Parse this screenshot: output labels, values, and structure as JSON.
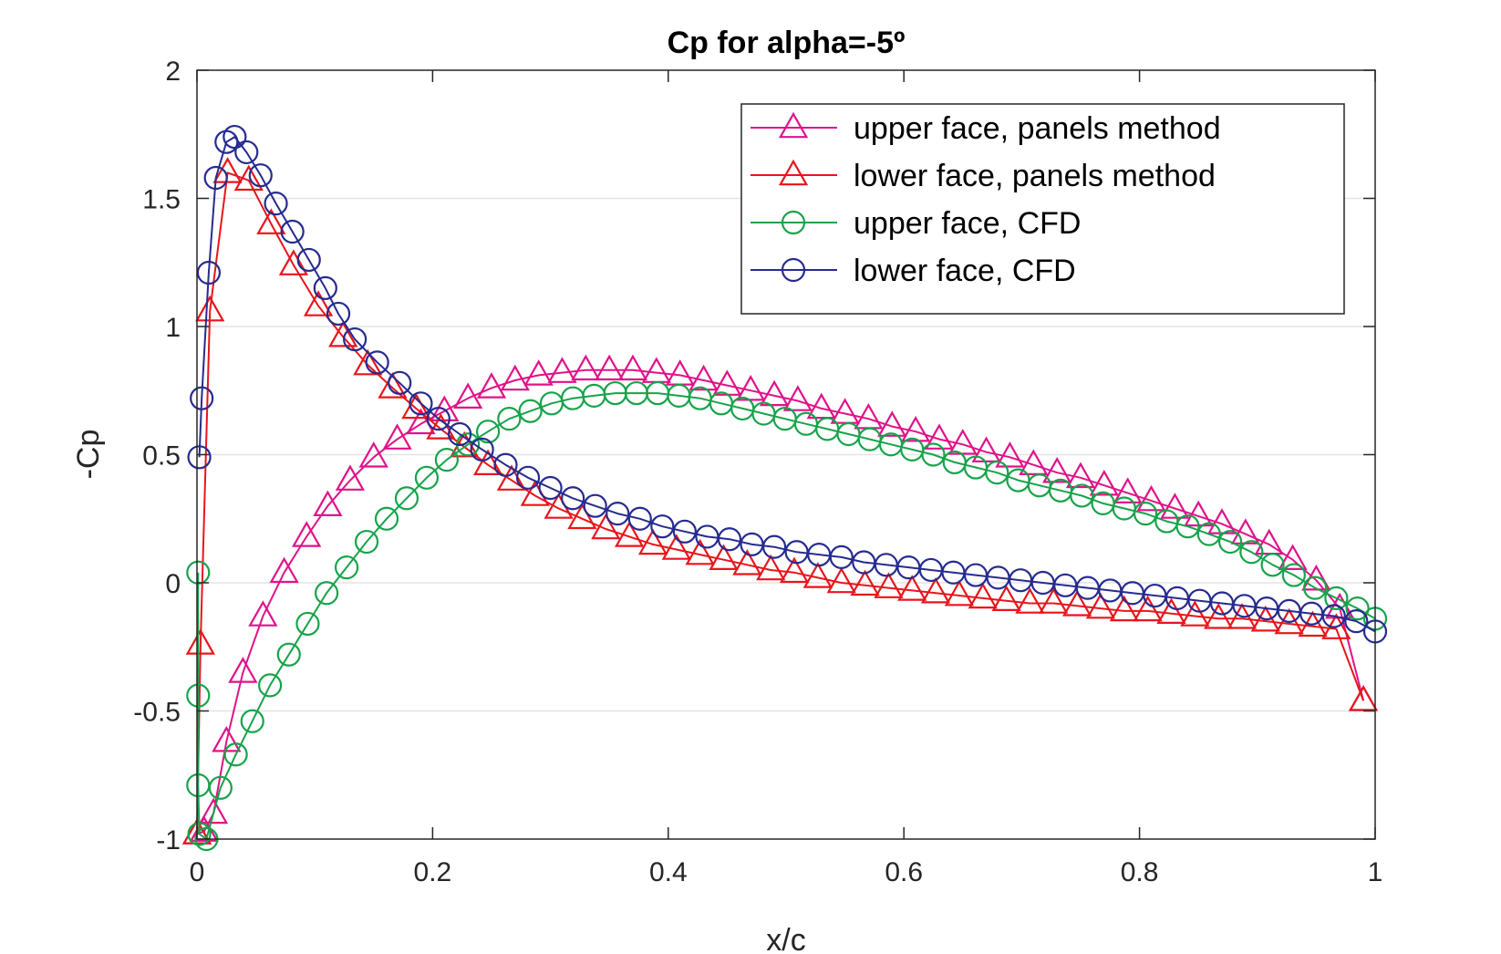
{
  "chart_data": {
    "type": "line",
    "title": "Cp for alpha=-5º",
    "xlabel": "x/c",
    "ylabel": "-Cp",
    "xlim": [
      0,
      1
    ],
    "ylim": [
      -1,
      2
    ],
    "xticks": [
      0,
      0.2,
      0.4,
      0.6,
      0.8,
      1
    ],
    "xtick_labels": [
      "0",
      "0.2",
      "0.4",
      "0.6",
      "0.8",
      "1"
    ],
    "yticks": [
      -1,
      -0.5,
      0,
      0.5,
      1,
      1.5,
      2
    ],
    "ytick_labels": [
      "-1",
      "-0.5",
      "0",
      "0.5",
      "1",
      "1.5",
      "2"
    ],
    "grid": "horizontal",
    "legend_position": "top-right",
    "series": [
      {
        "name": "upper face, panels method",
        "color": "#e0128a",
        "marker": "triangle",
        "x": [
          0.0,
          0.006,
          0.014,
          0.025,
          0.039,
          0.056,
          0.074,
          0.093,
          0.111,
          0.13,
          0.15,
          0.17,
          0.19,
          0.21,
          0.23,
          0.25,
          0.27,
          0.29,
          0.31,
          0.33,
          0.35,
          0.37,
          0.39,
          0.41,
          0.43,
          0.45,
          0.47,
          0.49,
          0.51,
          0.53,
          0.55,
          0.57,
          0.59,
          0.61,
          0.63,
          0.65,
          0.67,
          0.69,
          0.71,
          0.73,
          0.75,
          0.77,
          0.79,
          0.81,
          0.83,
          0.85,
          0.87,
          0.89,
          0.91,
          0.93,
          0.95,
          0.97,
          0.99
        ],
        "y": [
          -0.98,
          -0.97,
          -0.9,
          -0.62,
          -0.35,
          -0.13,
          0.04,
          0.18,
          0.3,
          0.4,
          0.49,
          0.56,
          0.62,
          0.67,
          0.72,
          0.76,
          0.79,
          0.81,
          0.82,
          0.83,
          0.83,
          0.83,
          0.82,
          0.81,
          0.79,
          0.77,
          0.75,
          0.73,
          0.71,
          0.68,
          0.66,
          0.64,
          0.61,
          0.59,
          0.56,
          0.54,
          0.51,
          0.49,
          0.46,
          0.43,
          0.41,
          0.38,
          0.35,
          0.32,
          0.29,
          0.26,
          0.23,
          0.19,
          0.15,
          0.09,
          0.01,
          -0.1,
          -0.46
        ]
      },
      {
        "name": "lower face, panels method",
        "color": "#e8151c",
        "marker": "triangle",
        "x": [
          0.0,
          0.003,
          0.011,
          0.026,
          0.044,
          0.063,
          0.082,
          0.103,
          0.124,
          0.145,
          0.166,
          0.186,
          0.207,
          0.227,
          0.247,
          0.267,
          0.287,
          0.307,
          0.327,
          0.347,
          0.367,
          0.387,
          0.407,
          0.427,
          0.447,
          0.467,
          0.487,
          0.507,
          0.527,
          0.547,
          0.567,
          0.587,
          0.607,
          0.627,
          0.647,
          0.667,
          0.687,
          0.707,
          0.727,
          0.747,
          0.767,
          0.787,
          0.807,
          0.827,
          0.847,
          0.867,
          0.887,
          0.907,
          0.927,
          0.947,
          0.967,
          0.99
        ],
        "y": [
          -0.98,
          -0.24,
          1.06,
          1.6,
          1.57,
          1.4,
          1.24,
          1.08,
          0.96,
          0.85,
          0.76,
          0.68,
          0.6,
          0.53,
          0.46,
          0.4,
          0.34,
          0.29,
          0.25,
          0.21,
          0.18,
          0.15,
          0.13,
          0.11,
          0.09,
          0.07,
          0.05,
          0.04,
          0.02,
          0.0,
          -0.01,
          -0.02,
          -0.03,
          -0.04,
          -0.05,
          -0.06,
          -0.07,
          -0.08,
          -0.08,
          -0.09,
          -0.1,
          -0.11,
          -0.11,
          -0.12,
          -0.13,
          -0.14,
          -0.14,
          -0.15,
          -0.16,
          -0.17,
          -0.18,
          -0.46
        ]
      },
      {
        "name": "upper face, CFD",
        "color": "#17a34a",
        "marker": "circle",
        "x": [
          0.001,
          0.001,
          0.001,
          0.002,
          0.008,
          0.02,
          0.033,
          0.047,
          0.062,
          0.078,
          0.094,
          0.11,
          0.127,
          0.144,
          0.161,
          0.178,
          0.195,
          0.212,
          0.23,
          0.247,
          0.265,
          0.283,
          0.301,
          0.319,
          0.337,
          0.355,
          0.373,
          0.391,
          0.409,
          0.427,
          0.445,
          0.463,
          0.481,
          0.499,
          0.517,
          0.535,
          0.553,
          0.571,
          0.589,
          0.607,
          0.625,
          0.643,
          0.661,
          0.679,
          0.697,
          0.715,
          0.733,
          0.751,
          0.769,
          0.787,
          0.805,
          0.823,
          0.841,
          0.859,
          0.877,
          0.895,
          0.913,
          0.931,
          0.949,
          0.967,
          0.985,
          1.0
        ],
        "y": [
          0.04,
          -0.44,
          -0.79,
          -0.98,
          -1.0,
          -0.8,
          -0.67,
          -0.54,
          -0.4,
          -0.28,
          -0.16,
          -0.04,
          0.06,
          0.16,
          0.25,
          0.33,
          0.41,
          0.48,
          0.54,
          0.59,
          0.64,
          0.67,
          0.7,
          0.72,
          0.73,
          0.74,
          0.74,
          0.74,
          0.73,
          0.72,
          0.7,
          0.68,
          0.66,
          0.64,
          0.62,
          0.6,
          0.58,
          0.56,
          0.54,
          0.52,
          0.5,
          0.47,
          0.45,
          0.43,
          0.4,
          0.38,
          0.36,
          0.34,
          0.31,
          0.29,
          0.27,
          0.24,
          0.22,
          0.19,
          0.16,
          0.12,
          0.07,
          0.03,
          -0.02,
          -0.06,
          -0.1,
          -0.14
        ]
      },
      {
        "name": "lower face, CFD",
        "color": "#262b8f",
        "marker": "circle",
        "x": [
          0.002,
          0.004,
          0.01,
          0.016,
          0.025,
          0.032,
          0.042,
          0.054,
          0.067,
          0.081,
          0.095,
          0.109,
          0.12,
          0.134,
          0.153,
          0.172,
          0.19,
          0.205,
          0.223,
          0.242,
          0.262,
          0.281,
          0.3,
          0.319,
          0.338,
          0.357,
          0.376,
          0.395,
          0.414,
          0.433,
          0.452,
          0.471,
          0.49,
          0.509,
          0.528,
          0.547,
          0.566,
          0.585,
          0.604,
          0.623,
          0.642,
          0.661,
          0.68,
          0.699,
          0.718,
          0.737,
          0.756,
          0.775,
          0.794,
          0.813,
          0.832,
          0.851,
          0.87,
          0.889,
          0.908,
          0.927,
          0.946,
          0.965,
          0.984,
          1.0
        ],
        "y": [
          0.49,
          0.72,
          1.21,
          1.58,
          1.72,
          1.74,
          1.68,
          1.59,
          1.48,
          1.37,
          1.26,
          1.15,
          1.05,
          0.95,
          0.86,
          0.78,
          0.7,
          0.64,
          0.58,
          0.52,
          0.46,
          0.41,
          0.37,
          0.33,
          0.3,
          0.27,
          0.25,
          0.22,
          0.2,
          0.18,
          0.17,
          0.15,
          0.14,
          0.12,
          0.11,
          0.1,
          0.08,
          0.07,
          0.06,
          0.05,
          0.04,
          0.03,
          0.02,
          0.01,
          0.0,
          -0.01,
          -0.02,
          -0.03,
          -0.04,
          -0.05,
          -0.06,
          -0.07,
          -0.08,
          -0.09,
          -0.1,
          -0.11,
          -0.12,
          -0.13,
          -0.15,
          -0.19
        ]
      }
    ]
  }
}
